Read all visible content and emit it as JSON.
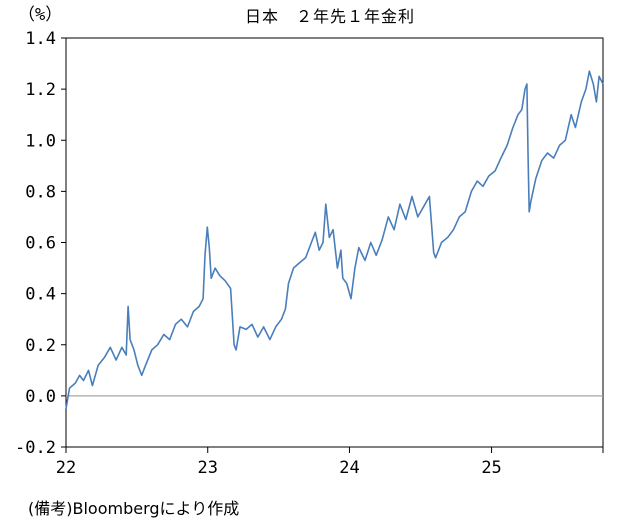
{
  "chart_data": {
    "type": "line",
    "title": "日本　２年先１年金利",
    "ylabel": "（%）",
    "xlabel": "",
    "ylim": [
      -0.2,
      1.4
    ],
    "xlim": [
      "2022-01-01",
      "2025-10-15"
    ],
    "y_ticks": [
      "-0.2",
      "0.0",
      "0.2",
      "0.4",
      "0.6",
      "0.8",
      "1.0",
      "1.2",
      "1.4"
    ],
    "x_ticks": [
      "22",
      "23",
      "24",
      "25"
    ],
    "grid": false,
    "legend": "none",
    "zero_line": true,
    "colors": {
      "series": "#4a7ebb",
      "zero_line": "#a6a6a6",
      "frame": "#000000"
    },
    "source_note": "(備考)Bloombergにより作成",
    "series": [
      {
        "values": [
          [
            "2022-01-01",
            -0.05
          ],
          [
            "2022-01-10",
            0.03
          ],
          [
            "2022-01-25",
            0.05
          ],
          [
            "2022-02-05",
            0.08
          ],
          [
            "2022-02-15",
            0.06
          ],
          [
            "2022-02-28",
            0.1
          ],
          [
            "2022-03-10",
            0.04
          ],
          [
            "2022-03-25",
            0.12
          ],
          [
            "2022-04-10",
            0.15
          ],
          [
            "2022-04-25",
            0.19
          ],
          [
            "2022-05-10",
            0.14
          ],
          [
            "2022-05-25",
            0.19
          ],
          [
            "2022-06-05",
            0.16
          ],
          [
            "2022-06-10",
            0.35
          ],
          [
            "2022-06-15",
            0.22
          ],
          [
            "2022-06-25",
            0.18
          ],
          [
            "2022-07-05",
            0.12
          ],
          [
            "2022-07-15",
            0.08
          ],
          [
            "2022-07-25",
            0.12
          ],
          [
            "2022-08-10",
            0.18
          ],
          [
            "2022-08-25",
            0.2
          ],
          [
            "2022-09-10",
            0.24
          ],
          [
            "2022-09-25",
            0.22
          ],
          [
            "2022-10-10",
            0.28
          ],
          [
            "2022-10-25",
            0.3
          ],
          [
            "2022-11-10",
            0.27
          ],
          [
            "2022-11-25",
            0.33
          ],
          [
            "2022-12-10",
            0.35
          ],
          [
            "2022-12-20",
            0.38
          ],
          [
            "2022-12-25",
            0.55
          ],
          [
            "2022-12-31",
            0.66
          ],
          [
            "2023-01-05",
            0.58
          ],
          [
            "2023-01-10",
            0.46
          ],
          [
            "2023-01-20",
            0.5
          ],
          [
            "2023-02-01",
            0.47
          ],
          [
            "2023-02-15",
            0.45
          ],
          [
            "2023-03-01",
            0.42
          ],
          [
            "2023-03-10",
            0.2
          ],
          [
            "2023-03-15",
            0.18
          ],
          [
            "2023-03-25",
            0.27
          ],
          [
            "2023-04-10",
            0.26
          ],
          [
            "2023-04-25",
            0.28
          ],
          [
            "2023-05-10",
            0.23
          ],
          [
            "2023-05-25",
            0.27
          ],
          [
            "2023-06-10",
            0.22
          ],
          [
            "2023-06-25",
            0.27
          ],
          [
            "2023-07-10",
            0.3
          ],
          [
            "2023-07-20",
            0.34
          ],
          [
            "2023-07-28",
            0.44
          ],
          [
            "2023-08-10",
            0.5
          ],
          [
            "2023-08-25",
            0.52
          ],
          [
            "2023-09-10",
            0.54
          ],
          [
            "2023-09-25",
            0.6
          ],
          [
            "2023-10-05",
            0.64
          ],
          [
            "2023-10-15",
            0.57
          ],
          [
            "2023-10-25",
            0.6
          ],
          [
            "2023-11-01",
            0.75
          ],
          [
            "2023-11-10",
            0.62
          ],
          [
            "2023-11-20",
            0.65
          ],
          [
            "2023-12-01",
            0.5
          ],
          [
            "2023-12-10",
            0.57
          ],
          [
            "2023-12-15",
            0.46
          ],
          [
            "2023-12-25",
            0.44
          ],
          [
            "2024-01-05",
            0.38
          ],
          [
            "2024-01-15",
            0.5
          ],
          [
            "2024-01-25",
            0.58
          ],
          [
            "2024-02-10",
            0.53
          ],
          [
            "2024-02-25",
            0.6
          ],
          [
            "2024-03-10",
            0.55
          ],
          [
            "2024-03-25",
            0.61
          ],
          [
            "2024-04-10",
            0.7
          ],
          [
            "2024-04-25",
            0.65
          ],
          [
            "2024-05-10",
            0.75
          ],
          [
            "2024-05-25",
            0.69
          ],
          [
            "2024-06-10",
            0.78
          ],
          [
            "2024-06-25",
            0.7
          ],
          [
            "2024-07-10",
            0.74
          ],
          [
            "2024-07-25",
            0.78
          ],
          [
            "2024-08-05",
            0.56
          ],
          [
            "2024-08-10",
            0.54
          ],
          [
            "2024-08-25",
            0.6
          ],
          [
            "2024-09-10",
            0.62
          ],
          [
            "2024-09-25",
            0.65
          ],
          [
            "2024-10-10",
            0.7
          ],
          [
            "2024-10-25",
            0.72
          ],
          [
            "2024-11-10",
            0.8
          ],
          [
            "2024-11-25",
            0.84
          ],
          [
            "2024-12-10",
            0.82
          ],
          [
            "2024-12-25",
            0.86
          ],
          [
            "2025-01-10",
            0.88
          ],
          [
            "2025-01-25",
            0.93
          ],
          [
            "2025-02-10",
            0.98
          ],
          [
            "2025-02-25",
            1.05
          ],
          [
            "2025-03-10",
            1.1
          ],
          [
            "2025-03-20",
            1.12
          ],
          [
            "2025-03-28",
            1.2
          ],
          [
            "2025-04-02",
            1.22
          ],
          [
            "2025-04-05",
            0.93
          ],
          [
            "2025-04-08",
            0.72
          ],
          [
            "2025-04-12",
            0.76
          ],
          [
            "2025-04-25",
            0.85
          ],
          [
            "2025-05-10",
            0.92
          ],
          [
            "2025-05-25",
            0.95
          ],
          [
            "2025-06-10",
            0.93
          ],
          [
            "2025-06-25",
            0.98
          ],
          [
            "2025-07-10",
            1.0
          ],
          [
            "2025-07-25",
            1.1
          ],
          [
            "2025-08-05",
            1.05
          ],
          [
            "2025-08-20",
            1.15
          ],
          [
            "2025-09-01",
            1.2
          ],
          [
            "2025-09-10",
            1.27
          ],
          [
            "2025-09-20",
            1.22
          ],
          [
            "2025-09-28",
            1.15
          ],
          [
            "2025-10-05",
            1.25
          ],
          [
            "2025-10-15",
            1.22
          ]
        ]
      }
    ]
  }
}
